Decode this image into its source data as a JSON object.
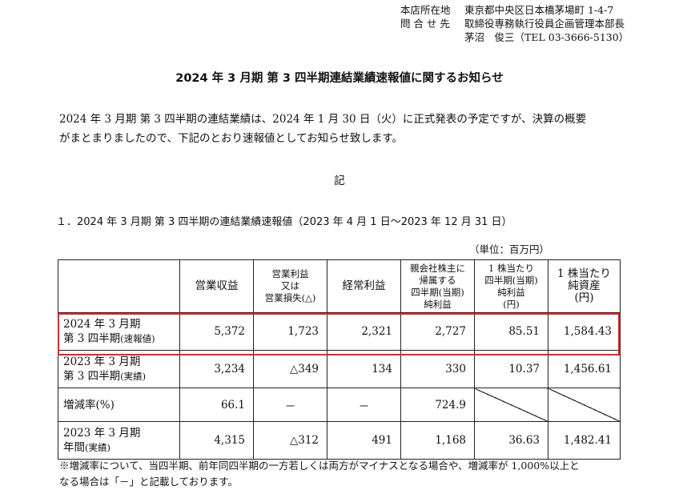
{
  "header": {
    "rows": [
      {
        "label": "本店所在地",
        "value": "東京都中央区日本橋茅場町 1-4-7"
      },
      {
        "label": "問 合 せ 先",
        "value": "取締役専務執行役員企画管理本部長"
      },
      {
        "label": "",
        "value": "茅沼　俊三（TEL 03-3666-5130）"
      }
    ]
  },
  "title": "2024 年 3 月期 第 3 四半期連結業績速報値に関するお知らせ",
  "intro": {
    "line1": "2024 年 3 月期 第 3 四半期の連結業績は、2024 年 1 月 30 日（火）に正式発表の予定ですが、決算の概要",
    "line2": "がまとまりましたので、下記のとおり速報値としてお知らせ致します。"
  },
  "ki": "記",
  "section_title": "１．2024 年 3 月期 第 3 四半期の連結業績速報値（2023 年 4 月 1 日～2023 年 12 月 31 日）",
  "unit": "（単位：百万円）",
  "table": {
    "headers": [
      {
        "lines": [
          "営業収益"
        ]
      },
      {
        "lines": [
          "営業利益",
          "又は",
          "営業損失(△)"
        ]
      },
      {
        "lines": [
          "経常利益"
        ]
      },
      {
        "lines": [
          "親会社株主に",
          "帰属する",
          "四半期(当期)",
          "純利益"
        ]
      },
      {
        "lines": [
          "1 株当たり",
          "四半期(当期)",
          "純利益",
          "(円)"
        ]
      },
      {
        "lines": [
          "1 株当たり",
          "純資産",
          "(円)"
        ]
      }
    ],
    "rows": [
      {
        "label1": "2024 年 3 月期",
        "label2": "第 3 四半期",
        "label2_small": "(速報値)",
        "values": [
          "5,372",
          "1,723",
          "2,321",
          "2,727",
          "85.51",
          "1,584.43"
        ]
      },
      {
        "label1": "2023 年 3 月期",
        "label2": "第 3 四半期",
        "label2_small": "(実績)",
        "values": [
          "3,234",
          "△349",
          "134",
          "330",
          "10.37",
          "1,456.61"
        ]
      },
      {
        "label1": "増減率(%)",
        "label2": "",
        "label2_small": "",
        "values": [
          "66.1",
          "－",
          "－",
          "724.9",
          "",
          ""
        ]
      },
      {
        "label1": "2023 年 3 月期",
        "label2": "年間",
        "label2_small": "(実績)",
        "values": [
          "4,315",
          "△312",
          "491",
          "1,168",
          "36.63",
          "1,482.41"
        ]
      }
    ]
  },
  "note": {
    "line1": "※増減率について、当四半期、前年同四半期の一方若しくは両方がマイナスとなる場合や、増減率が 1,000%以上と",
    "line2": "なる場合は「－」と記載しております。"
  },
  "highlight_color": "#e8212b"
}
